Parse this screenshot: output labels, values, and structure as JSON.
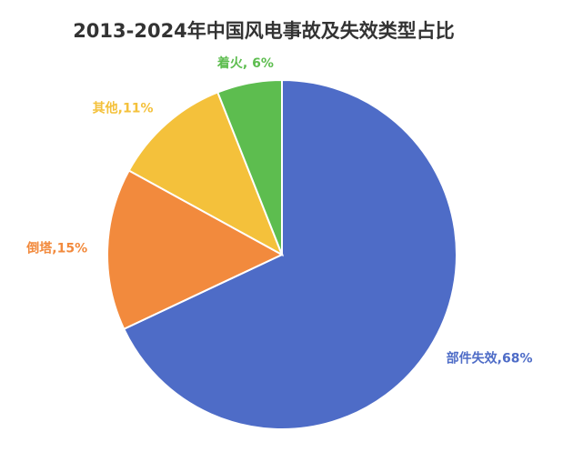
{
  "chart_data": {
    "type": "pie",
    "title": "2013-2024年中国风电事故及失效类型占比",
    "values": [
      68,
      15,
      11,
      6
    ],
    "value_labels": [
      "部件失效,68%",
      "倒塔,15%",
      "其他,11%",
      "着火, 6%"
    ],
    "colors": [
      "#4e6cc7",
      "#f28a3d",
      "#f4c13b",
      "#5dbd4f"
    ]
  }
}
